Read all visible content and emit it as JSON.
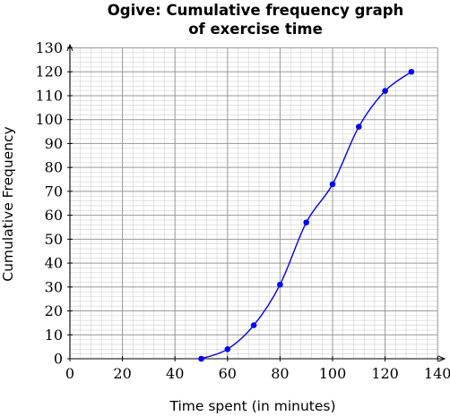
{
  "chart_data": {
    "type": "line",
    "title_lines": [
      "Ogive: Cumulative frequency graph",
      "of exercise time"
    ],
    "xlabel": "Time spent (in minutes)",
    "ylabel": "Cumulative Frequency",
    "xlim": [
      0,
      140
    ],
    "ylim": [
      0,
      130
    ],
    "x_ticks": [
      0,
      20,
      40,
      60,
      80,
      100,
      120,
      140
    ],
    "y_ticks": [
      0,
      10,
      20,
      30,
      40,
      50,
      60,
      70,
      80,
      90,
      100,
      110,
      120,
      130
    ],
    "grid": true,
    "series": [
      {
        "x": [
          50,
          60,
          70,
          80,
          90,
          100,
          110,
          120,
          130
        ],
        "y": [
          0,
          4,
          14,
          31,
          57,
          73,
          97,
          112,
          120
        ],
        "color": "#0000ff"
      }
    ]
  }
}
